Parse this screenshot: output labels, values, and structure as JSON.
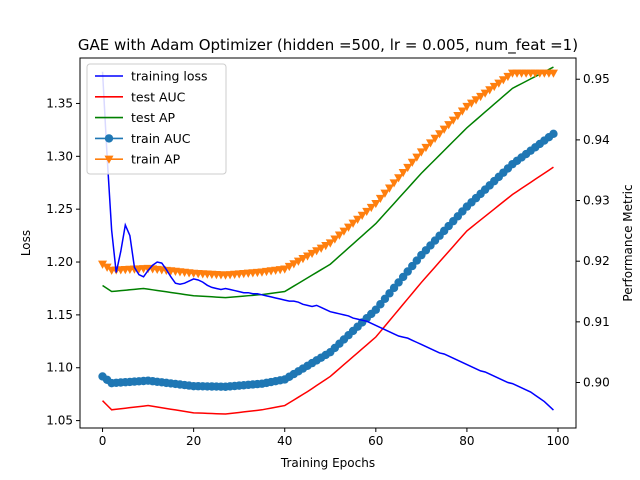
{
  "chart_data": {
    "type": "line",
    "title": "GAE with Adam Optimizer (hidden =500, lr = 0.005, num_feat =1)",
    "xlabel": "Training Epochs",
    "ylabel_left": "Loss",
    "ylabel_right": "Performance Metric",
    "xlim": [
      -4.95,
      103.95
    ],
    "ylim_left": [
      1.043,
      1.393
    ],
    "ylim_right": [
      0.8925,
      0.9535
    ],
    "x_ticks": [
      0,
      20,
      40,
      60,
      80,
      100
    ],
    "y_ticks_left": [
      1.05,
      1.1,
      1.15,
      1.2,
      1.25,
      1.3,
      1.35
    ],
    "y_ticks_right": [
      0.9,
      0.91,
      0.92,
      0.93,
      0.94,
      0.95
    ],
    "grid": false,
    "legend_position": "top-left",
    "colors": {
      "training_loss": "#0000ff",
      "test_auc": "#ff0000",
      "test_ap": "#008000",
      "train_auc": "#1f77b4",
      "train_ap": "#ff7f0e"
    },
    "series": [
      {
        "name": "training loss",
        "axis": "left",
        "color": "#0000ff",
        "marker": "none",
        "points": [
          [
            0,
            1.38
          ],
          [
            1,
            1.3
          ],
          [
            2,
            1.23
          ],
          [
            3,
            1.19
          ],
          [
            4,
            1.21
          ],
          [
            5,
            1.235
          ],
          [
            6,
            1.225
          ],
          [
            7,
            1.195
          ],
          [
            8,
            1.188
          ],
          [
            9,
            1.186
          ],
          [
            10,
            1.192
          ],
          [
            11,
            1.197
          ],
          [
            12,
            1.2
          ],
          [
            13,
            1.199
          ],
          [
            14,
            1.193
          ],
          [
            15,
            1.186
          ],
          [
            16,
            1.18
          ],
          [
            17,
            1.179
          ],
          [
            18,
            1.18
          ],
          [
            19,
            1.182
          ],
          [
            20,
            1.184
          ],
          [
            21,
            1.183
          ],
          [
            22,
            1.181
          ],
          [
            23,
            1.178
          ],
          [
            24,
            1.176
          ],
          [
            25,
            1.175
          ],
          [
            26,
            1.174
          ],
          [
            27,
            1.175
          ],
          [
            28,
            1.174
          ],
          [
            29,
            1.173
          ],
          [
            30,
            1.172
          ],
          [
            31,
            1.171
          ],
          [
            32,
            1.171
          ],
          [
            33,
            1.17
          ],
          [
            34,
            1.17
          ],
          [
            35,
            1.169
          ],
          [
            36,
            1.168
          ],
          [
            37,
            1.167
          ],
          [
            38,
            1.166
          ],
          [
            39,
            1.165
          ],
          [
            40,
            1.164
          ],
          [
            41,
            1.163
          ],
          [
            42,
            1.163
          ],
          [
            43,
            1.162
          ],
          [
            44,
            1.16
          ],
          [
            45,
            1.159
          ],
          [
            46,
            1.158
          ],
          [
            47,
            1.159
          ],
          [
            48,
            1.157
          ],
          [
            49,
            1.155
          ],
          [
            50,
            1.153
          ],
          [
            51,
            1.152
          ],
          [
            52,
            1.151
          ],
          [
            53,
            1.15
          ],
          [
            54,
            1.149
          ],
          [
            55,
            1.147
          ],
          [
            56,
            1.146
          ],
          [
            57,
            1.145
          ],
          [
            58,
            1.144
          ],
          [
            59,
            1.142
          ],
          [
            60,
            1.14
          ],
          [
            61,
            1.138
          ],
          [
            62,
            1.136
          ],
          [
            63,
            1.134
          ],
          [
            64,
            1.132
          ],
          [
            65,
            1.13
          ],
          [
            66,
            1.129
          ],
          [
            67,
            1.128
          ],
          [
            68,
            1.126
          ],
          [
            69,
            1.124
          ],
          [
            70,
            1.122
          ],
          [
            71,
            1.12
          ],
          [
            72,
            1.118
          ],
          [
            73,
            1.116
          ],
          [
            74,
            1.114
          ],
          [
            75,
            1.113
          ],
          [
            76,
            1.111
          ],
          [
            77,
            1.109
          ],
          [
            78,
            1.107
          ],
          [
            79,
            1.105
          ],
          [
            80,
            1.103
          ],
          [
            81,
            1.101
          ],
          [
            82,
            1.099
          ],
          [
            83,
            1.097
          ],
          [
            84,
            1.096
          ],
          [
            85,
            1.094
          ],
          [
            86,
            1.092
          ],
          [
            87,
            1.09
          ],
          [
            88,
            1.088
          ],
          [
            89,
            1.086
          ],
          [
            90,
            1.085
          ],
          [
            91,
            1.083
          ],
          [
            92,
            1.081
          ],
          [
            93,
            1.079
          ],
          [
            94,
            1.077
          ],
          [
            95,
            1.074
          ],
          [
            96,
            1.071
          ],
          [
            97,
            1.068
          ],
          [
            98,
            1.064
          ],
          [
            99,
            1.06
          ]
        ]
      },
      {
        "name": "test AUC",
        "axis": "right",
        "color": "#ff0000",
        "marker": "none",
        "start": [
          0,
          0.897
        ],
        "waypoints": [
          [
            2,
            0.8955
          ],
          [
            10,
            0.8962
          ],
          [
            20,
            0.895
          ],
          [
            27,
            0.8948
          ],
          [
            35,
            0.8955
          ],
          [
            40,
            0.8962
          ],
          [
            45,
            0.8985
          ],
          [
            50,
            0.901
          ],
          [
            60,
            0.9075
          ],
          [
            70,
            0.9165
          ],
          [
            80,
            0.925
          ],
          [
            90,
            0.931
          ],
          [
            99,
            0.9355
          ]
        ]
      },
      {
        "name": "test AP",
        "axis": "right",
        "color": "#008000",
        "marker": "none",
        "start": [
          0,
          0.916
        ],
        "waypoints": [
          [
            2,
            0.915
          ],
          [
            9,
            0.9155
          ],
          [
            20,
            0.9143
          ],
          [
            27,
            0.914
          ],
          [
            35,
            0.9145
          ],
          [
            40,
            0.915
          ],
          [
            50,
            0.9195
          ],
          [
            60,
            0.9262
          ],
          [
            70,
            0.9345
          ],
          [
            80,
            0.942
          ],
          [
            90,
            0.9485
          ],
          [
            99,
            0.952
          ]
        ]
      },
      {
        "name": "train AUC",
        "axis": "right",
        "color": "#1f77b4",
        "marker": "circle",
        "start": [
          0,
          0.901
        ],
        "waypoints": [
          [
            2,
            0.8999
          ],
          [
            10,
            0.9003
          ],
          [
            20,
            0.8994
          ],
          [
            27,
            0.8993
          ],
          [
            35,
            0.8998
          ],
          [
            40,
            0.9005
          ],
          [
            50,
            0.905
          ],
          [
            60,
            0.912
          ],
          [
            70,
            0.921
          ],
          [
            80,
            0.929
          ],
          [
            90,
            0.936
          ],
          [
            99,
            0.941
          ]
        ]
      },
      {
        "name": "train AP",
        "axis": "right",
        "color": "#ff7f0e",
        "marker": "triangle-down",
        "start": [
          0,
          0.9195
        ],
        "waypoints": [
          [
            2,
            0.9185
          ],
          [
            10,
            0.9188
          ],
          [
            20,
            0.918
          ],
          [
            27,
            0.9177
          ],
          [
            35,
            0.9182
          ],
          [
            40,
            0.9187
          ],
          [
            50,
            0.923
          ],
          [
            60,
            0.9295
          ],
          [
            70,
            0.938
          ],
          [
            80,
            0.9455
          ],
          [
            90,
            0.951
          ],
          [
            99,
            0.951
          ]
        ]
      }
    ]
  }
}
